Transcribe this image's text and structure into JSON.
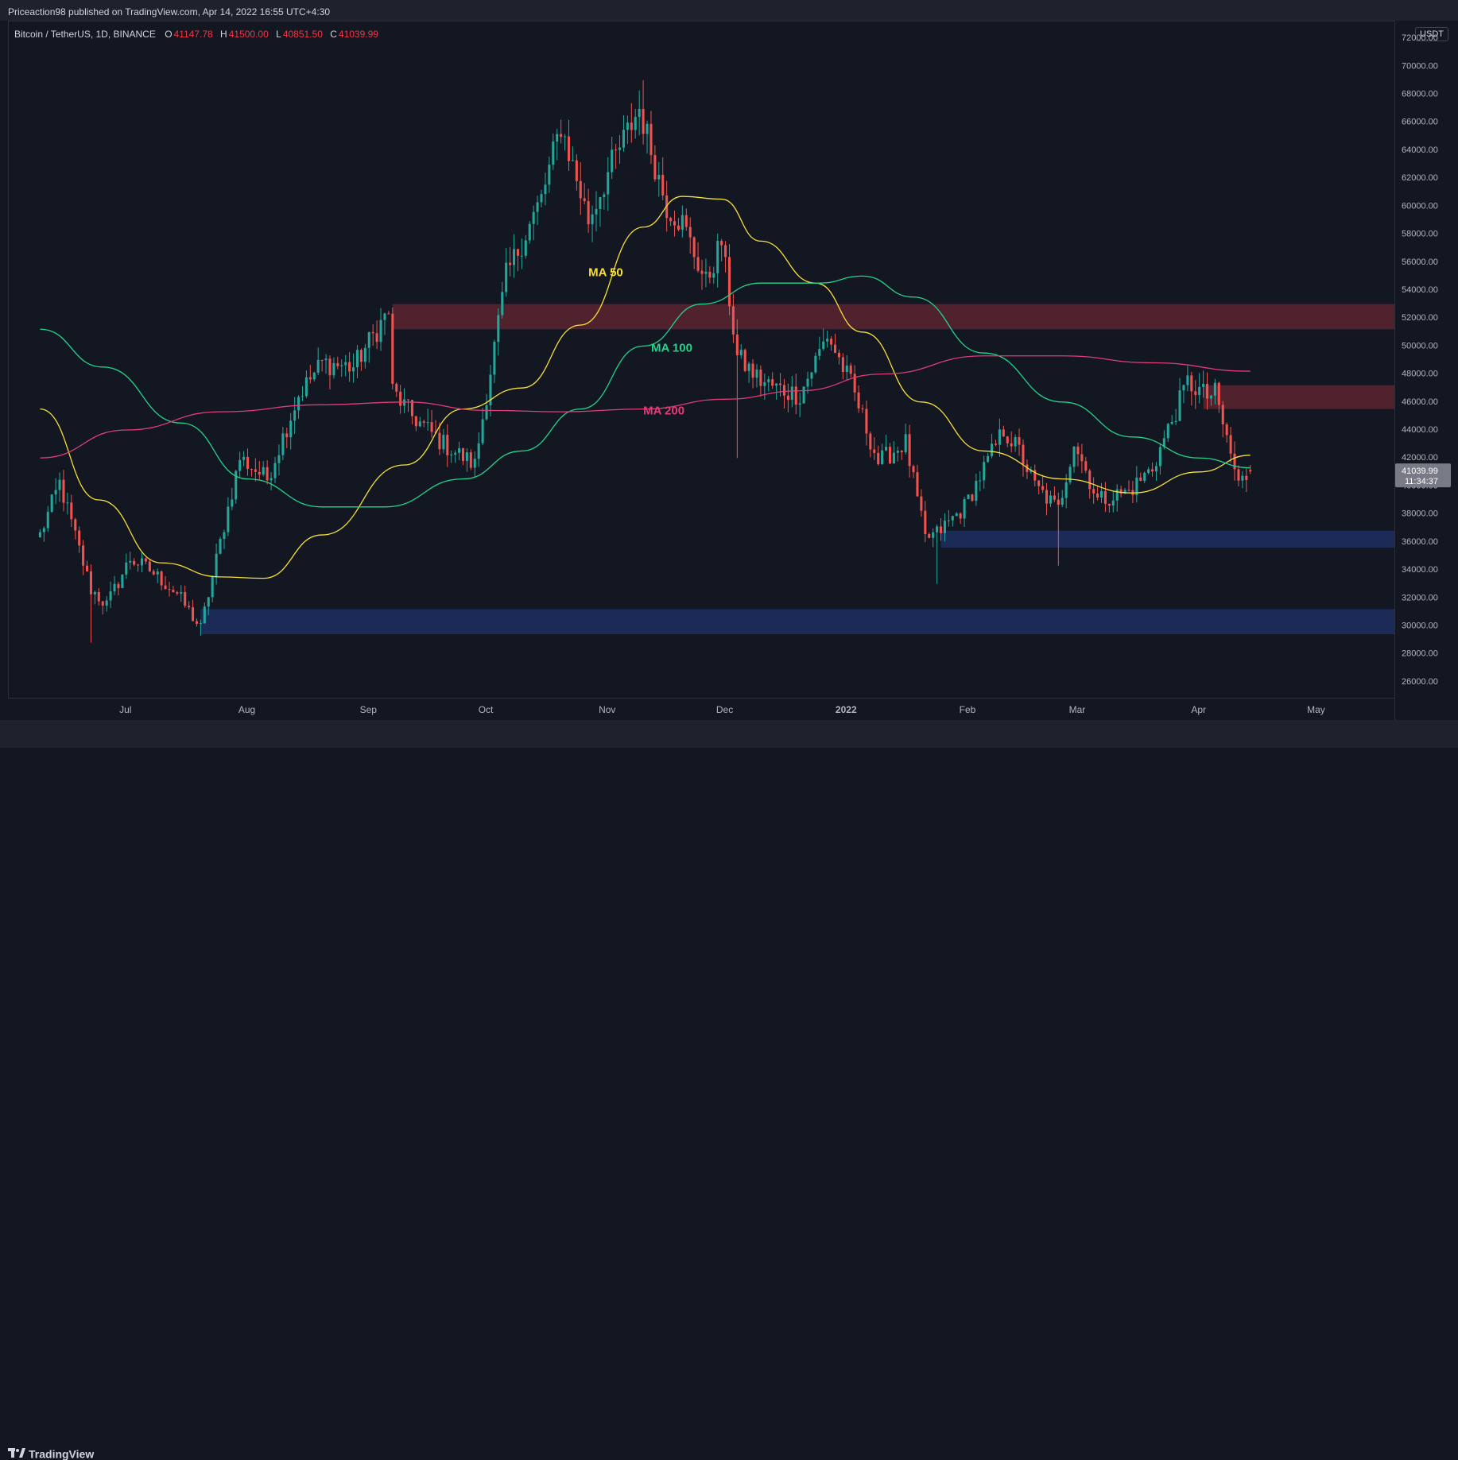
{
  "header": {
    "published": "Priceaction98 published on TradingView.com, Apr 14, 2022 16:55 UTC+4:30"
  },
  "legend": {
    "symbol": "Bitcoin / TetherUS, 1D, BINANCE",
    "open_label": "O",
    "open": "41147.78",
    "high_label": "H",
    "high": "41500.00",
    "low_label": "L",
    "low": "40851.50",
    "close_label": "C",
    "close": "41039.99"
  },
  "price_axis": {
    "unit": "USDT",
    "ticks": [
      "72000.00",
      "70000.00",
      "68000.00",
      "66000.00",
      "64000.00",
      "62000.00",
      "60000.00",
      "58000.00",
      "56000.00",
      "54000.00",
      "52000.00",
      "50000.00",
      "48000.00",
      "46000.00",
      "44000.00",
      "42000.00",
      "40000.00",
      "38000.00",
      "36000.00",
      "34000.00",
      "32000.00",
      "30000.00",
      "28000.00",
      "26000.00"
    ],
    "last_price": "41039.99",
    "countdown": "11:34:37"
  },
  "time_axis": {
    "labels": [
      "Jul",
      "Aug",
      "Sep",
      "Oct",
      "Nov",
      "Dec",
      "2022",
      "Feb",
      "Mar",
      "Apr",
      "May"
    ]
  },
  "brand": {
    "name": "TradingView"
  },
  "colors": {
    "up": "#26a69a",
    "down": "#ef5350",
    "ma50": "#f7e03a",
    "ma100": "#22d48a",
    "ma200": "#e03c78",
    "resistance_zone": "#5c2530",
    "support_zone": "#1e2e62"
  },
  "chart_data": {
    "type": "candlestick",
    "title": "Bitcoin / TetherUS, 1D, BINANCE",
    "ylim": [
      24800,
      73200
    ],
    "x_range": [
      "2022-06-09",
      "2022-05-11"
    ],
    "series_labels": [
      {
        "name": "MA 50",
        "date": "2021-10-27",
        "y": 55000
      },
      {
        "name": "MA 100",
        "date": "2021-11-12",
        "y": 49600
      },
      {
        "name": "MA 200",
        "date": "2021-11-10",
        "y": 45100
      }
    ],
    "zones": [
      {
        "kind": "resistance",
        "from": "2021-09-07",
        "to": "2022-05-11",
        "y_low": 51200,
        "y_high": 53000
      },
      {
        "kind": "resistance",
        "from": "2022-04-02",
        "to": "2022-05-11",
        "y_low": 45500,
        "y_high": 47200
      },
      {
        "kind": "support",
        "from": "2022-01-25",
        "to": "2022-05-11",
        "y_low": 35600,
        "y_high": 36800
      },
      {
        "kind": "support",
        "from": "2021-07-20",
        "to": "2022-05-11",
        "y_low": 29400,
        "y_high": 31200
      }
    ],
    "anchors": [
      [
        "2021-06-09",
        36500
      ],
      [
        "2021-06-14",
        40200
      ],
      [
        "2021-06-22",
        32600
      ],
      [
        "2021-06-26",
        31500
      ],
      [
        "2021-07-02",
        34800
      ],
      [
        "2021-07-07",
        34000
      ],
      [
        "2021-07-14",
        32300
      ],
      [
        "2021-07-20",
        29800
      ],
      [
        "2021-07-26",
        37200
      ],
      [
        "2021-07-30",
        42000
      ],
      [
        "2021-08-06",
        40500
      ],
      [
        "2021-08-14",
        46500
      ],
      [
        "2021-08-20",
        48800
      ],
      [
        "2021-08-28",
        48500
      ],
      [
        "2021-09-06",
        52500
      ],
      [
        "2021-09-07",
        46800
      ],
      [
        "2021-09-12",
        45000
      ],
      [
        "2021-09-20",
        43000
      ],
      [
        "2021-09-28",
        41500
      ],
      [
        "2021-10-06",
        55000
      ],
      [
        "2021-10-15",
        60500
      ],
      [
        "2021-10-20",
        65800
      ],
      [
        "2021-10-27",
        59000
      ],
      [
        "2021-11-02",
        63000
      ],
      [
        "2021-11-09",
        67000
      ],
      [
        "2021-11-12",
        64000
      ],
      [
        "2021-11-16",
        60000
      ],
      [
        "2021-11-20",
        58800
      ],
      [
        "2021-11-26",
        54500
      ],
      [
        "2021-11-30",
        57500
      ],
      [
        "2021-12-04",
        49200
      ],
      [
        "2021-12-10",
        47500
      ],
      [
        "2021-12-14",
        47000
      ],
      [
        "2021-12-20",
        46500
      ],
      [
        "2021-12-27",
        50800
      ],
      [
        "2022-01-02",
        47300
      ],
      [
        "2022-01-09",
        41700
      ],
      [
        "2022-01-16",
        43100
      ],
      [
        "2022-01-21",
        36200
      ],
      [
        "2022-01-24",
        36600
      ],
      [
        "2022-01-31",
        38500
      ],
      [
        "2022-02-10",
        44000
      ],
      [
        "2022-02-14",
        42500
      ],
      [
        "2022-02-18",
        40000
      ],
      [
        "2022-02-24",
        38300
      ],
      [
        "2022-02-28",
        43200
      ],
      [
        "2022-03-06",
        39000
      ],
      [
        "2022-03-14",
        39600
      ],
      [
        "2022-03-20",
        41300
      ],
      [
        "2022-03-29",
        47400
      ],
      [
        "2022-04-03",
        46400
      ],
      [
        "2022-04-05",
        46600
      ],
      [
        "2022-04-11",
        40100
      ],
      [
        "2022-04-14",
        41040
      ]
    ],
    "moving_averages": [
      {
        "name": "MA 50",
        "color": "#f7e03a",
        "points": [
          [
            "2021-06-09",
            45500
          ],
          [
            "2021-06-24",
            39000
          ],
          [
            "2021-07-10",
            34500
          ],
          [
            "2021-07-25",
            33500
          ],
          [
            "2021-08-05",
            33400
          ],
          [
            "2021-08-20",
            36500
          ],
          [
            "2021-09-10",
            41500
          ],
          [
            "2021-09-25",
            45500
          ],
          [
            "2021-10-10",
            47000
          ],
          [
            "2021-10-25",
            51500
          ],
          [
            "2021-11-10",
            58500
          ],
          [
            "2021-11-20",
            60700
          ],
          [
            "2021-11-30",
            60500
          ],
          [
            "2021-12-10",
            57500
          ],
          [
            "2021-12-24",
            54500
          ],
          [
            "2022-01-05",
            51000
          ],
          [
            "2022-01-20",
            46000
          ],
          [
            "2022-02-05",
            42500
          ],
          [
            "2022-02-25",
            40500
          ],
          [
            "2022-03-15",
            39500
          ],
          [
            "2022-04-01",
            41000
          ],
          [
            "2022-04-14",
            42200
          ]
        ]
      },
      {
        "name": "MA 100",
        "color": "#22d48a",
        "points": [
          [
            "2021-06-09",
            51200
          ],
          [
            "2021-06-25",
            48500
          ],
          [
            "2021-07-15",
            44500
          ],
          [
            "2021-08-01",
            40500
          ],
          [
            "2021-08-20",
            38500
          ],
          [
            "2021-09-05",
            38500
          ],
          [
            "2021-09-25",
            40500
          ],
          [
            "2021-10-10",
            42500
          ],
          [
            "2021-10-25",
            45500
          ],
          [
            "2021-11-10",
            50000
          ],
          [
            "2021-11-25",
            53000
          ],
          [
            "2021-12-10",
            54500
          ],
          [
            "2021-12-25",
            54500
          ],
          [
            "2022-01-05",
            55000
          ],
          [
            "2022-01-18",
            53500
          ],
          [
            "2022-02-05",
            49500
          ],
          [
            "2022-02-25",
            46000
          ],
          [
            "2022-03-15",
            43500
          ],
          [
            "2022-04-01",
            42000
          ],
          [
            "2022-04-14",
            41300
          ]
        ]
      },
      {
        "name": "MA 200",
        "color": "#e03c78",
        "points": [
          [
            "2021-06-09",
            42000
          ],
          [
            "2021-07-01",
            44000
          ],
          [
            "2021-07-25",
            45300
          ],
          [
            "2021-08-20",
            45800
          ],
          [
            "2021-09-10",
            46000
          ],
          [
            "2021-10-01",
            45400
          ],
          [
            "2021-10-20",
            45300
          ],
          [
            "2021-11-10",
            45500
          ],
          [
            "2021-12-01",
            46200
          ],
          [
            "2021-12-20",
            46800
          ],
          [
            "2022-01-10",
            48000
          ],
          [
            "2022-02-05",
            49300
          ],
          [
            "2022-02-25",
            49300
          ],
          [
            "2022-03-20",
            48800
          ],
          [
            "2022-04-14",
            48200
          ]
        ]
      }
    ],
    "extremes": [
      {
        "date": "2021-11-10",
        "y": 68990,
        "kind": "high"
      },
      {
        "date": "2021-12-04",
        "y": 42000,
        "kind": "low"
      },
      {
        "date": "2022-01-24",
        "y": 33000,
        "kind": "low"
      },
      {
        "date": "2022-02-24",
        "y": 34300,
        "kind": "low"
      },
      {
        "date": "2021-06-22",
        "y": 28800,
        "kind": "low"
      },
      {
        "date": "2021-07-20",
        "y": 29300,
        "kind": "low"
      }
    ]
  }
}
